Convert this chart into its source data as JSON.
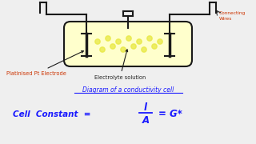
{
  "bg_color": "#efefef",
  "label_platinised": "Platinised Pt Electrode",
  "label_electrolyte": "Electrolyte solution",
  "label_connecting": "Connecting\nWires",
  "label_diagram": "Diagram of a conductivity cell",
  "label_formula_left": "Cell  Constant  =",
  "label_formula_frac_num": "l",
  "label_formula_frac_den": "A",
  "label_formula_right": "= G*",
  "red_color": "#cc3300",
  "blue_color": "#1a1aff",
  "black_color": "#1a1a1a",
  "cell_fill": "#ffffcc",
  "dot_color": "#e8e840"
}
